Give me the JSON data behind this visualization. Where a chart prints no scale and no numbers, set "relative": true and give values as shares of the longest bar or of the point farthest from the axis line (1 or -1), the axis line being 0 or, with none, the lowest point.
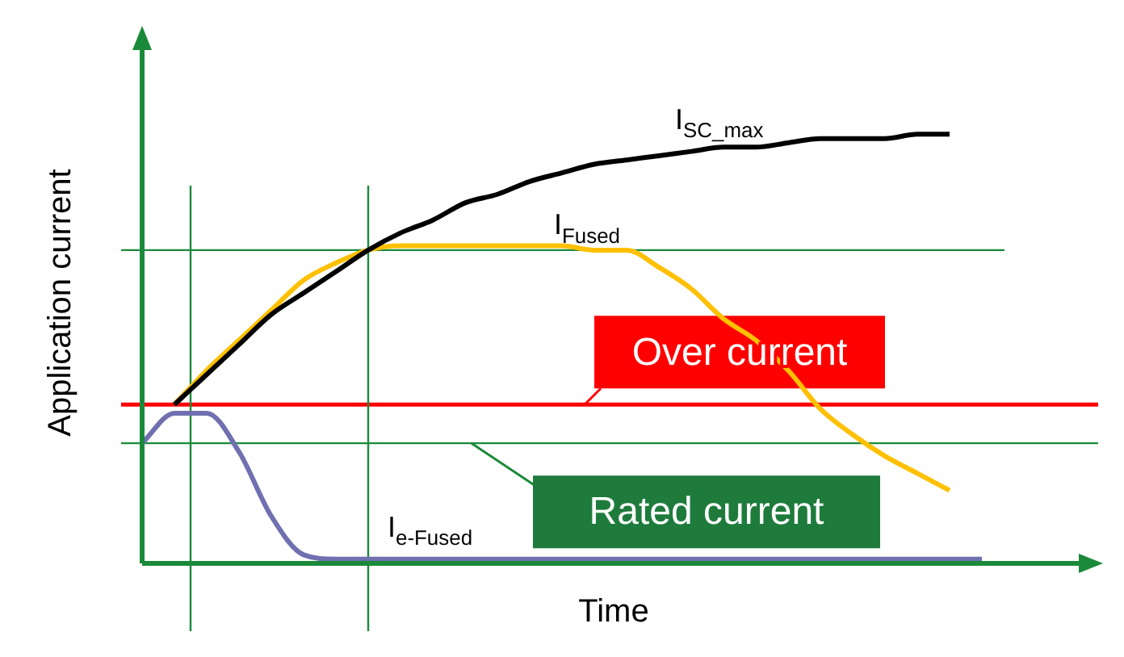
{
  "chart_data": {
    "type": "line",
    "relative": true,
    "xlabel": "Time",
    "ylabel": "Application current",
    "categories": [
      null,
      null,
      null,
      null,
      null,
      null,
      null,
      null,
      null,
      null,
      null,
      null,
      null,
      null,
      null,
      null,
      null,
      null,
      null,
      null,
      null,
      null,
      null,
      null,
      null,
      null,
      null,
      null,
      null,
      null
    ],
    "series": [
      {
        "name": "I$_{SC_max}$",
        "color": "#000000",
        "values": [
          null,
          0.37,
          0.44,
          0.51,
          0.58,
          0.63,
          0.68,
          0.73,
          0.77,
          0.8,
          0.84,
          0.86,
          0.89,
          0.91,
          0.93,
          0.94,
          0.95,
          0.96,
          0.97,
          0.97,
          0.98,
          0.99,
          0.99,
          0.99,
          1.0,
          1,
          null,
          null,
          null,
          null
        ]
      },
      {
        "name": "I$_{Fused}$",
        "color": "#ffc000",
        "values": [
          null,
          0.37,
          0.45,
          0.52,
          0.59,
          0.66,
          0.7,
          0.73,
          0.74,
          0.74,
          0.74,
          0.74,
          0.74,
          0.74,
          0.73,
          0.73,
          0.69,
          0.64,
          0.57,
          0.52,
          0.45,
          0.36,
          0.3,
          0.25,
          0.21,
          0.17,
          null,
          null,
          null,
          null
        ]
      },
      {
        "name": "I$_{e-Fused}$",
        "color": "#7070b0",
        "values": [
          0.28,
          0.35,
          0.35,
          0.26,
          0.11,
          0.02,
          0.01,
          0.01,
          0.01,
          0.01,
          0.01,
          0.01,
          0.01,
          0.01,
          0.01,
          0.01,
          0.01,
          0.01,
          0.01,
          0.01,
          0.01,
          0.01,
          0.01,
          0.01,
          0.01,
          0.01,
          0.01,
          null,
          null,
          null
        ]
      }
    ],
    "ref_lines": [
      {
        "axis": "y",
        "value": 0.37,
        "label": "Over current",
        "color": "#ff0000"
      },
      {
        "axis": "y",
        "value": 0.28,
        "label": "Rated current",
        "color": "#1a8a3a"
      },
      {
        "axis": "y",
        "value": 0.73,
        "color": "#1a8a3a"
      }
    ],
    "marker": "none",
    "legend": false,
    "grid": false
  }
}
